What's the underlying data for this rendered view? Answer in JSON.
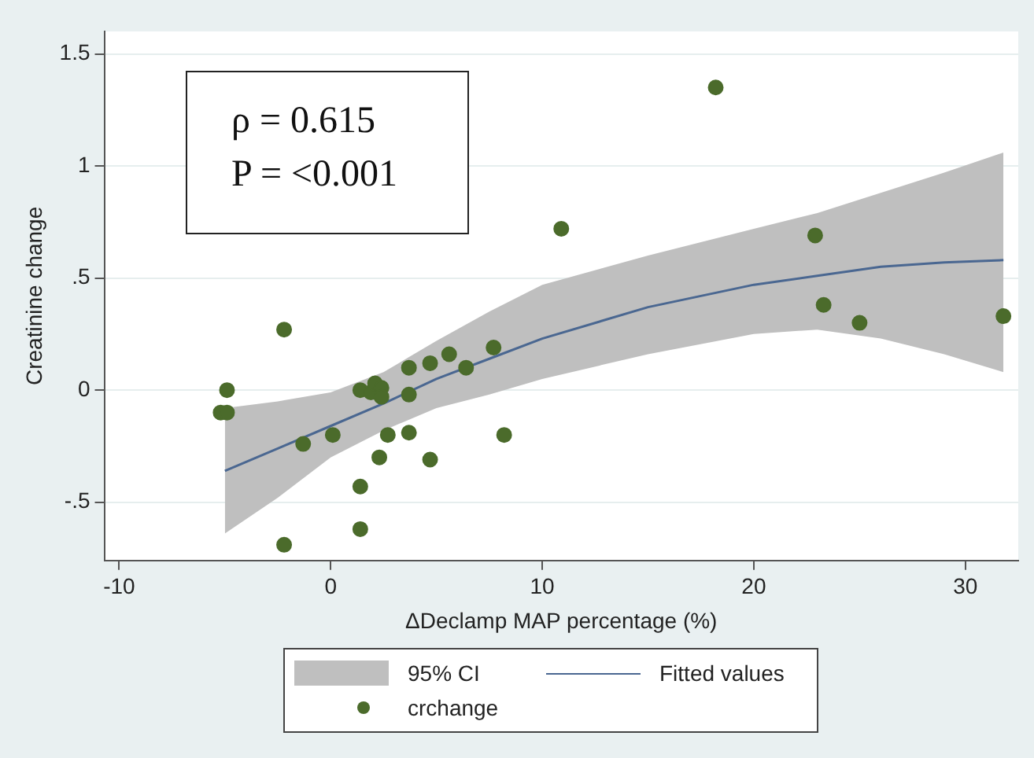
{
  "chart_data": {
    "type": "scatter",
    "xlabel": "ΔDeclamp MAP percentage (%)",
    "ylabel": "Creatinine change",
    "xlim": [
      -10.7,
      32.5
    ],
    "ylim": [
      -0.76,
      1.6
    ],
    "xticks": [
      -10,
      0,
      10,
      20,
      30
    ],
    "yticks": [
      {
        "value": -0.5,
        "label": "-.5"
      },
      0,
      {
        "value": 0.5,
        "label": ".5"
      },
      1,
      1.5
    ],
    "grid": "y",
    "legend": "bottom",
    "marker": "circle",
    "annotations": [
      "ρ = 0.615",
      "P = <0.001",
      "95% CI"
    ],
    "series": [
      {
        "type": "line",
        "name": "Fitted values",
        "color": "#4a6791",
        "marker": "none",
        "x": [
          -5,
          -2.5,
          0,
          2.5,
          5,
          7.5,
          10,
          15,
          20,
          23,
          26,
          29,
          31.8
        ],
        "values": [
          -0.36,
          -0.26,
          -0.16,
          -0.06,
          0.05,
          0.14,
          0.23,
          0.37,
          0.47,
          0.51,
          0.55,
          0.57,
          0.58
        ],
        "lower": [
          -0.64,
          -0.48,
          -0.3,
          -0.18,
          -0.08,
          -0.02,
          0.05,
          0.16,
          0.25,
          0.27,
          0.23,
          0.16,
          0.08
        ],
        "upper": [
          -0.08,
          -0.05,
          -0.01,
          0.08,
          0.22,
          0.35,
          0.47,
          0.6,
          0.72,
          0.79,
          0.88,
          0.97,
          1.06
        ]
      },
      {
        "name": "crchange",
        "color": "#4b6b2b",
        "x": [
          -4.9,
          -5.2,
          -4.9,
          -2.2,
          -2.2,
          -1.3,
          0.1,
          1.4,
          1.9,
          2.1,
          2.4,
          2.4,
          1.4,
          1.4,
          2.3,
          2.7,
          3.7,
          3.7,
          3.7,
          4.7,
          4.7,
          5.6,
          6.4,
          7.7,
          8.2,
          10.9,
          18.2,
          22.9,
          23.3,
          25.0,
          31.8
        ],
        "values": [
          0.0,
          -0.1,
          -0.1,
          0.27,
          -0.69,
          -0.24,
          -0.2,
          0.0,
          -0.01,
          0.03,
          0.01,
          -0.03,
          -0.43,
          -0.62,
          -0.3,
          -0.2,
          0.1,
          -0.02,
          -0.19,
          0.12,
          -0.31,
          0.16,
          0.1,
          0.19,
          -0.2,
          0.72,
          1.35,
          0.69,
          0.38,
          0.3,
          0.33
        ]
      }
    ]
  }
}
